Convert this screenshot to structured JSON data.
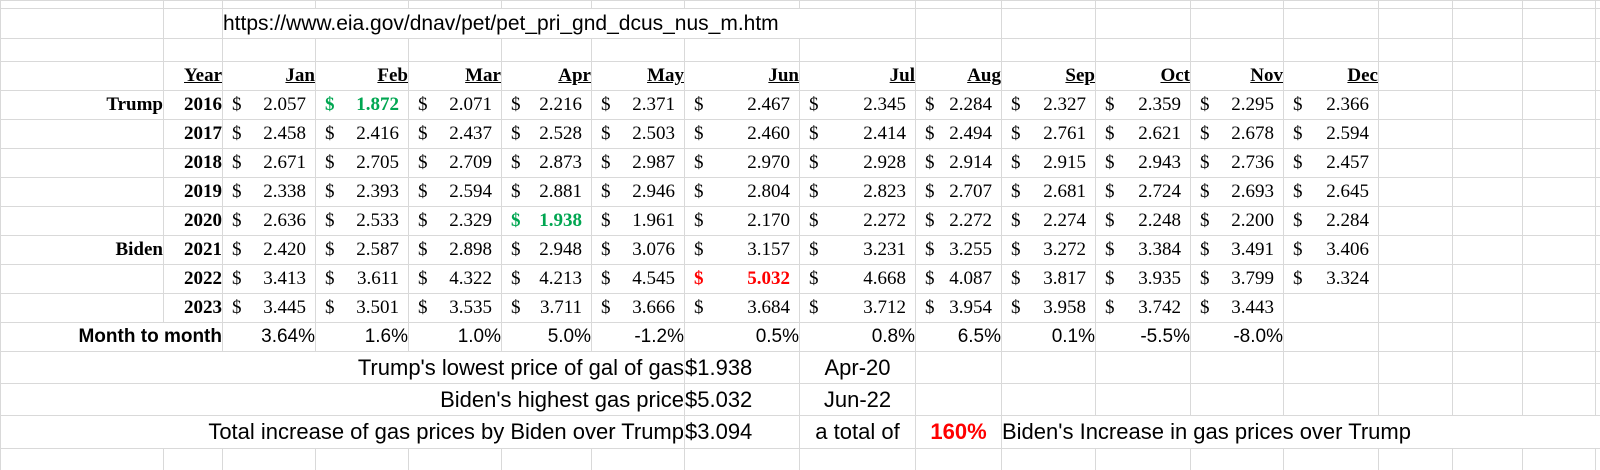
{
  "page": {
    "url_text": "https://www.eia.gov/dnav/pet/pet_pri_gnd_dcus_nus_m.htm"
  },
  "colors": {
    "grid": "#d9d9d9",
    "text": "#000000",
    "green": "#00a651",
    "red": "#ff0000"
  },
  "currency_symbol": "$",
  "table": {
    "col_headers": [
      "Year",
      "Jan",
      "Feb",
      "Mar",
      "Apr",
      "May",
      "Jun",
      "Jul",
      "Aug",
      "Sep",
      "Oct",
      "Nov",
      "Dec"
    ],
    "rows": [
      {
        "president": "Trump",
        "year": "2016",
        "prices": [
          "2.057",
          "1.872",
          "2.071",
          "2.216",
          "2.371",
          "2.467",
          "2.345",
          "2.284",
          "2.327",
          "2.359",
          "2.295",
          "2.366"
        ],
        "highlights": {
          "1": "green"
        }
      },
      {
        "president": "",
        "year": "2017",
        "prices": [
          "2.458",
          "2.416",
          "2.437",
          "2.528",
          "2.503",
          "2.460",
          "2.414",
          "2.494",
          "2.761",
          "2.621",
          "2.678",
          "2.594"
        ],
        "highlights": {}
      },
      {
        "president": "",
        "year": "2018",
        "prices": [
          "2.671",
          "2.705",
          "2.709",
          "2.873",
          "2.987",
          "2.970",
          "2.928",
          "2.914",
          "2.915",
          "2.943",
          "2.736",
          "2.457"
        ],
        "highlights": {}
      },
      {
        "president": "",
        "year": "2019",
        "prices": [
          "2.338",
          "2.393",
          "2.594",
          "2.881",
          "2.946",
          "2.804",
          "2.823",
          "2.707",
          "2.681",
          "2.724",
          "2.693",
          "2.645"
        ],
        "highlights": {}
      },
      {
        "president": "",
        "year": "2020",
        "prices": [
          "2.636",
          "2.533",
          "2.329",
          "1.938",
          "1.961",
          "2.170",
          "2.272",
          "2.272",
          "2.274",
          "2.248",
          "2.200",
          "2.284"
        ],
        "highlights": {
          "3": "green"
        }
      },
      {
        "president": "Biden",
        "year": "2021",
        "prices": [
          "2.420",
          "2.587",
          "2.898",
          "2.948",
          "3.076",
          "3.157",
          "3.231",
          "3.255",
          "3.272",
          "3.384",
          "3.491",
          "3.406"
        ],
        "highlights": {}
      },
      {
        "president": "",
        "year": "2022",
        "prices": [
          "3.413",
          "3.611",
          "4.322",
          "4.213",
          "4.545",
          "5.032",
          "4.668",
          "4.087",
          "3.817",
          "3.935",
          "3.799",
          "3.324"
        ],
        "highlights": {
          "5": "red"
        }
      },
      {
        "president": "",
        "year": "2023",
        "prices": [
          "3.445",
          "3.501",
          "3.535",
          "3.711",
          "3.666",
          "3.684",
          "3.712",
          "3.954",
          "3.958",
          "3.742",
          "3.443",
          ""
        ],
        "highlights": {}
      }
    ],
    "month_to_month": {
      "label": "Month to month",
      "values": [
        "3.64%",
        "1.6%",
        "1.0%",
        "5.0%",
        "-1.2%",
        "0.5%",
        "0.8%",
        "6.5%",
        "0.1%",
        "-5.5%",
        "-8.0%",
        ""
      ]
    }
  },
  "summary": [
    {
      "label": "Trump's lowest price of gal of gas",
      "value": "$1.938",
      "note": "Apr-20"
    },
    {
      "label": "Biden's highest gas price",
      "value": "$5.032",
      "note": "Jun-22"
    },
    {
      "label": "Total increase of gas prices by Biden over Trump",
      "value": "$3.094",
      "note": "a total of",
      "percent": "160%",
      "tail": "Biden's Increase in gas prices over Trump"
    }
  ]
}
